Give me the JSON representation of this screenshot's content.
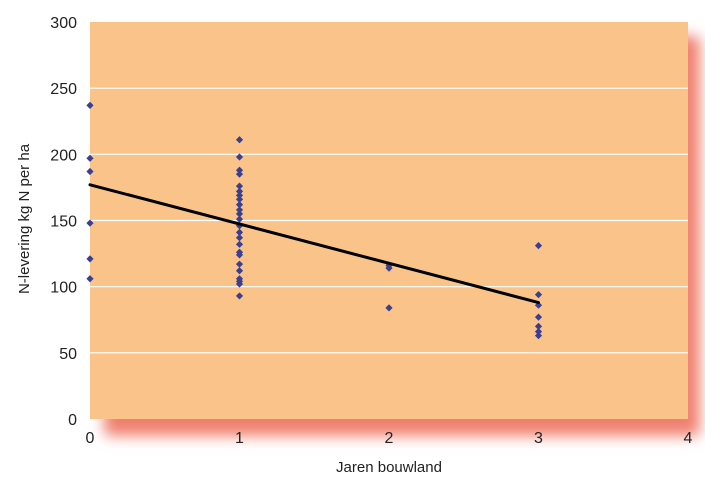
{
  "chart_data": {
    "type": "scatter",
    "title": "",
    "xlabel": "Jaren bouwland",
    "ylabel": "N-levering kg N per ha",
    "xlim": [
      0,
      4
    ],
    "ylim": [
      0,
      300
    ],
    "x_ticks": [
      0,
      1,
      2,
      3,
      4
    ],
    "y_ticks": [
      0,
      50,
      100,
      150,
      200,
      250,
      300
    ],
    "grid": "horizontal",
    "legend": "none",
    "colors": {
      "plot_background": "#fac38a",
      "grid": "#ffffff",
      "points": "#3b3f8f",
      "trendline": "#000000",
      "shadow": "#f08070"
    },
    "series": [
      {
        "points": [
          [
            0,
            237
          ],
          [
            0,
            197
          ],
          [
            0,
            187
          ],
          [
            0,
            148
          ],
          [
            0,
            121
          ],
          [
            0,
            106
          ],
          [
            1,
            211
          ],
          [
            1,
            198
          ],
          [
            1,
            188
          ],
          [
            1,
            185
          ],
          [
            1,
            176
          ],
          [
            1,
            172
          ],
          [
            1,
            169
          ],
          [
            1,
            166
          ],
          [
            1,
            162
          ],
          [
            1,
            158
          ],
          [
            1,
            155
          ],
          [
            1,
            151
          ],
          [
            1,
            146
          ],
          [
            1,
            141
          ],
          [
            1,
            137
          ],
          [
            1,
            132
          ],
          [
            1,
            126
          ],
          [
            1,
            124
          ],
          [
            1,
            117
          ],
          [
            1,
            112
          ],
          [
            1,
            106
          ],
          [
            1,
            104
          ],
          [
            1,
            102
          ],
          [
            1,
            93
          ],
          [
            2,
            116
          ],
          [
            2,
            114
          ],
          [
            2,
            84
          ],
          [
            3,
            131
          ],
          [
            3,
            94
          ],
          [
            3,
            86
          ],
          [
            3,
            77
          ],
          [
            3,
            70
          ],
          [
            3,
            66
          ],
          [
            3,
            63
          ]
        ]
      }
    ],
    "trendline": {
      "x": [
        0,
        3
      ],
      "y": [
        177,
        88
      ]
    }
  }
}
